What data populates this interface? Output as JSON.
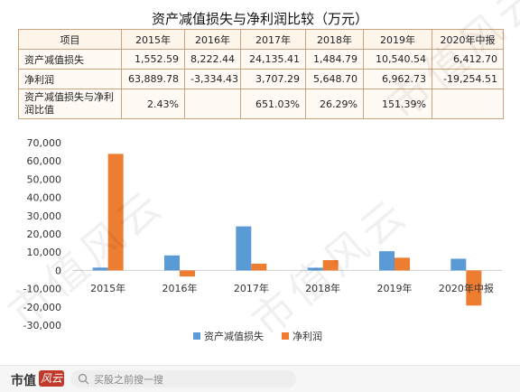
{
  "table": {
    "title": "资产减值损失与净利润比较（万元）",
    "header": [
      "项目",
      "2015年",
      "2016年",
      "2017年",
      "2018年",
      "2019年",
      "2020年中报"
    ],
    "rows": [
      {
        "label": "资产减值损失",
        "cells": [
          "1,552.59",
          "8,222.44",
          "24,135.41",
          "1,484.79",
          "10,540.54",
          "6,412.70"
        ]
      },
      {
        "label": "净利润",
        "cells": [
          "63,889.78",
          "-3,334.43",
          "3,707.29",
          "5,648.70",
          "6,962.73",
          "-19,254.51"
        ]
      },
      {
        "label": "资产减值损失与净利润比值",
        "cells": [
          "2.43%",
          "",
          "651.03%",
          "26.29%",
          "151.39%",
          ""
        ]
      }
    ]
  },
  "chart_data": {
    "type": "bar",
    "categories": [
      "2015年",
      "2016年",
      "2017年",
      "2018年",
      "2019年",
      "2020年中报"
    ],
    "series": [
      {
        "name": "资产减值损失",
        "values": [
          1552.59,
          8222.44,
          24135.41,
          1484.79,
          10540.54,
          6412.7
        ],
        "color": "#5b9bd5"
      },
      {
        "name": "净利润",
        "values": [
          63889.78,
          -3334.43,
          3707.29,
          5648.7,
          6962.73,
          -19254.51
        ],
        "color": "#ed7d31"
      }
    ],
    "ylim": [
      -30000,
      70000
    ],
    "yticks": [
      "-30,000",
      "-20,000",
      "-10,000",
      "0",
      "10,000",
      "20,000",
      "30,000",
      "40,000",
      "50,000",
      "60,000",
      "70,000"
    ],
    "ytick_values": [
      -30000,
      -20000,
      -10000,
      0,
      10000,
      20000,
      30000,
      40000,
      50000,
      60000,
      70000
    ],
    "grid": false,
    "legend_position": "bottom"
  },
  "watermark": "市值风云",
  "bottom_bar": {
    "brand": "市值",
    "brand_logo_text": "风云",
    "search_placeholder": "买股之前搜一搜",
    "search_icon": "search-icon"
  }
}
